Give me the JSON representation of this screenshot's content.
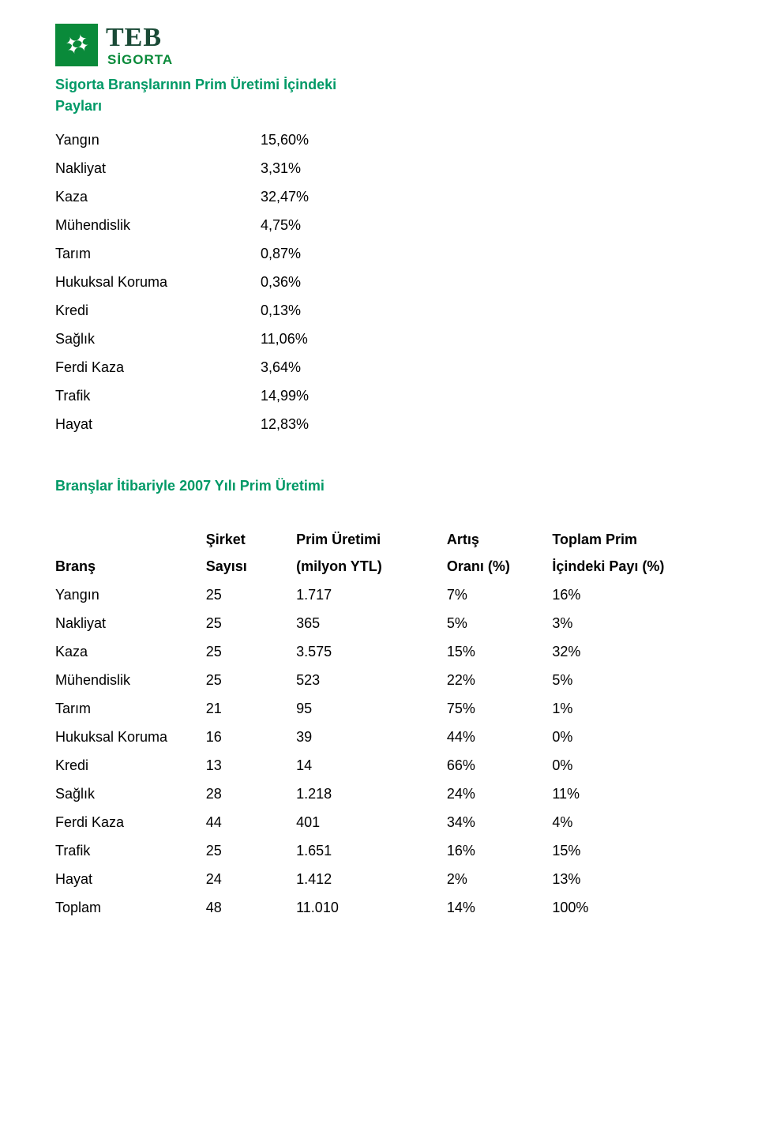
{
  "logo": {
    "teb": "TEB",
    "sigorta": "SİGORTA"
  },
  "section1": {
    "title_line1": "Sigorta Branşlarının Prim Üretimi İçindeki",
    "title_line2": "Payları",
    "rows": [
      {
        "label": "Yangın",
        "value": "15,60%"
      },
      {
        "label": "Nakliyat",
        "value": "3,31%"
      },
      {
        "label": "Kaza",
        "value": "32,47%"
      },
      {
        "label": "Mühendislik",
        "value": "4,75%"
      },
      {
        "label": "Tarım",
        "value": "0,87%"
      },
      {
        "label": "Hukuksal Koruma",
        "value": "0,36%"
      },
      {
        "label": "Kredi",
        "value": "0,13%"
      },
      {
        "label": "Sağlık",
        "value": "11,06%"
      },
      {
        "label": "Ferdi Kaza",
        "value": "3,64%"
      },
      {
        "label": "Trafik",
        "value": "14,99%"
      },
      {
        "label": "Hayat",
        "value": "12,83%"
      }
    ]
  },
  "section2": {
    "title": "Branşlar İtibariyle 2007 Yılı Prim Üretimi",
    "header": {
      "row1": {
        "brans": "",
        "sirket": "Şirket",
        "prim": "Prim Üretimi",
        "artis": "Artış",
        "toplam": "Toplam Prim"
      },
      "row2": {
        "brans": "Branş",
        "sirket": "Sayısı",
        "prim": "(milyon YTL)",
        "artis": "Oranı (%)",
        "toplam": "İçindeki Payı (%)"
      }
    },
    "rows": [
      {
        "brans": "Yangın",
        "sirket": "25",
        "prim": "1.717",
        "artis": "7%",
        "toplam": "16%"
      },
      {
        "brans": "Nakliyat",
        "sirket": "25",
        "prim": "365",
        "artis": "5%",
        "toplam": "3%"
      },
      {
        "brans": "Kaza",
        "sirket": "25",
        "prim": "3.575",
        "artis": "15%",
        "toplam": "32%"
      },
      {
        "brans": "Mühendislik",
        "sirket": "25",
        "prim": "523",
        "artis": "22%",
        "toplam": "5%"
      },
      {
        "brans": "Tarım",
        "sirket": "21",
        "prim": "95",
        "artis": "75%",
        "toplam": "1%"
      },
      {
        "brans": "Hukuksal Koruma",
        "sirket": "16",
        "prim": "39",
        "artis": "44%",
        "toplam": "0%"
      },
      {
        "brans": "Kredi",
        "sirket": "13",
        "prim": "14",
        "artis": "66%",
        "toplam": "0%"
      },
      {
        "brans": "Sağlık",
        "sirket": "28",
        "prim": "1.218",
        "artis": "24%",
        "toplam": "11%"
      },
      {
        "brans": "Ferdi Kaza",
        "sirket": "44",
        "prim": "401",
        "artis": "34%",
        "toplam": "4%"
      },
      {
        "brans": "Trafik",
        "sirket": "25",
        "prim": "1.651",
        "artis": "16%",
        "toplam": "15%"
      },
      {
        "brans": "Hayat",
        "sirket": "24",
        "prim": "1.412",
        "artis": "2%",
        "toplam": "13%"
      },
      {
        "brans": "Toplam",
        "sirket": "48",
        "prim": "11.010",
        "artis": "14%",
        "toplam": "100%"
      }
    ]
  },
  "colors": {
    "heading": "#009966",
    "text": "#000000",
    "logo_green": "#0a8a3a",
    "logo_dark": "#1a4a36",
    "background": "#ffffff"
  },
  "typography": {
    "body_fontsize_pt": 14,
    "heading_fontsize_pt": 14,
    "font_family": "Arial"
  }
}
